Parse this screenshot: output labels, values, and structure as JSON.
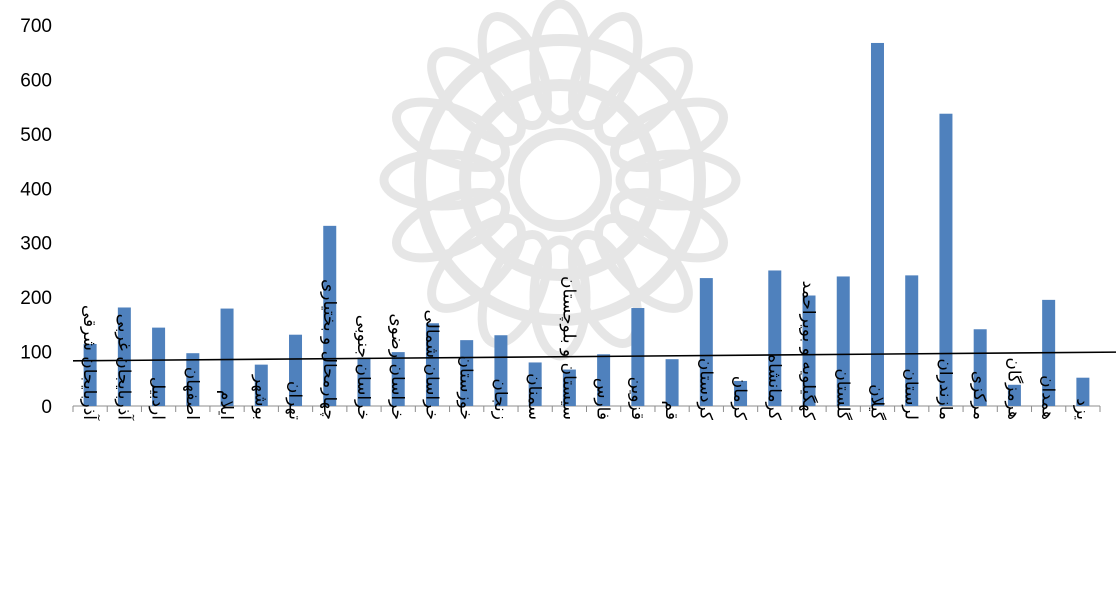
{
  "chart_data": {
    "type": "bar",
    "title": "",
    "xlabel": "",
    "ylabel": "",
    "ylim": [
      0,
      700
    ],
    "yticks": [
      0,
      100,
      200,
      300,
      400,
      500,
      600,
      700
    ],
    "grid": false,
    "legend": "none",
    "bar_color": "#4f81bd",
    "trendline": {
      "type": "linear",
      "start": 83,
      "end": 99,
      "color": "#000000"
    },
    "categories": [
      "آذربایجان شرقی",
      "آذربایجان غربی",
      "اردبیل",
      "اصفهان",
      "ایلام",
      "بوشهر",
      "تهران",
      "چهارمحال و بختیاری",
      "خراسان جنوبی",
      "خراسان رضوی",
      "خراسان شمالی",
      "خوزستان",
      "زنجان",
      "سمنان",
      "سیستان و بلوچستان",
      "فارس",
      "قزوین",
      "قم",
      "کردستان",
      "کرمان",
      "کرمانشاه",
      "کهگیلویه و بویراحمد",
      "گلستان",
      "گیلان",
      "لرستان",
      "مازندران",
      "مرکزی",
      "هرمزگان",
      "همدان",
      "یزد"
    ],
    "values": [
      114,
      181,
      144,
      97,
      179,
      76,
      131,
      331,
      89,
      99,
      152,
      121,
      130,
      80,
      67,
      95,
      180,
      86,
      235,
      46,
      249,
      203,
      238,
      667,
      240,
      537,
      141,
      39,
      195,
      52
    ]
  }
}
